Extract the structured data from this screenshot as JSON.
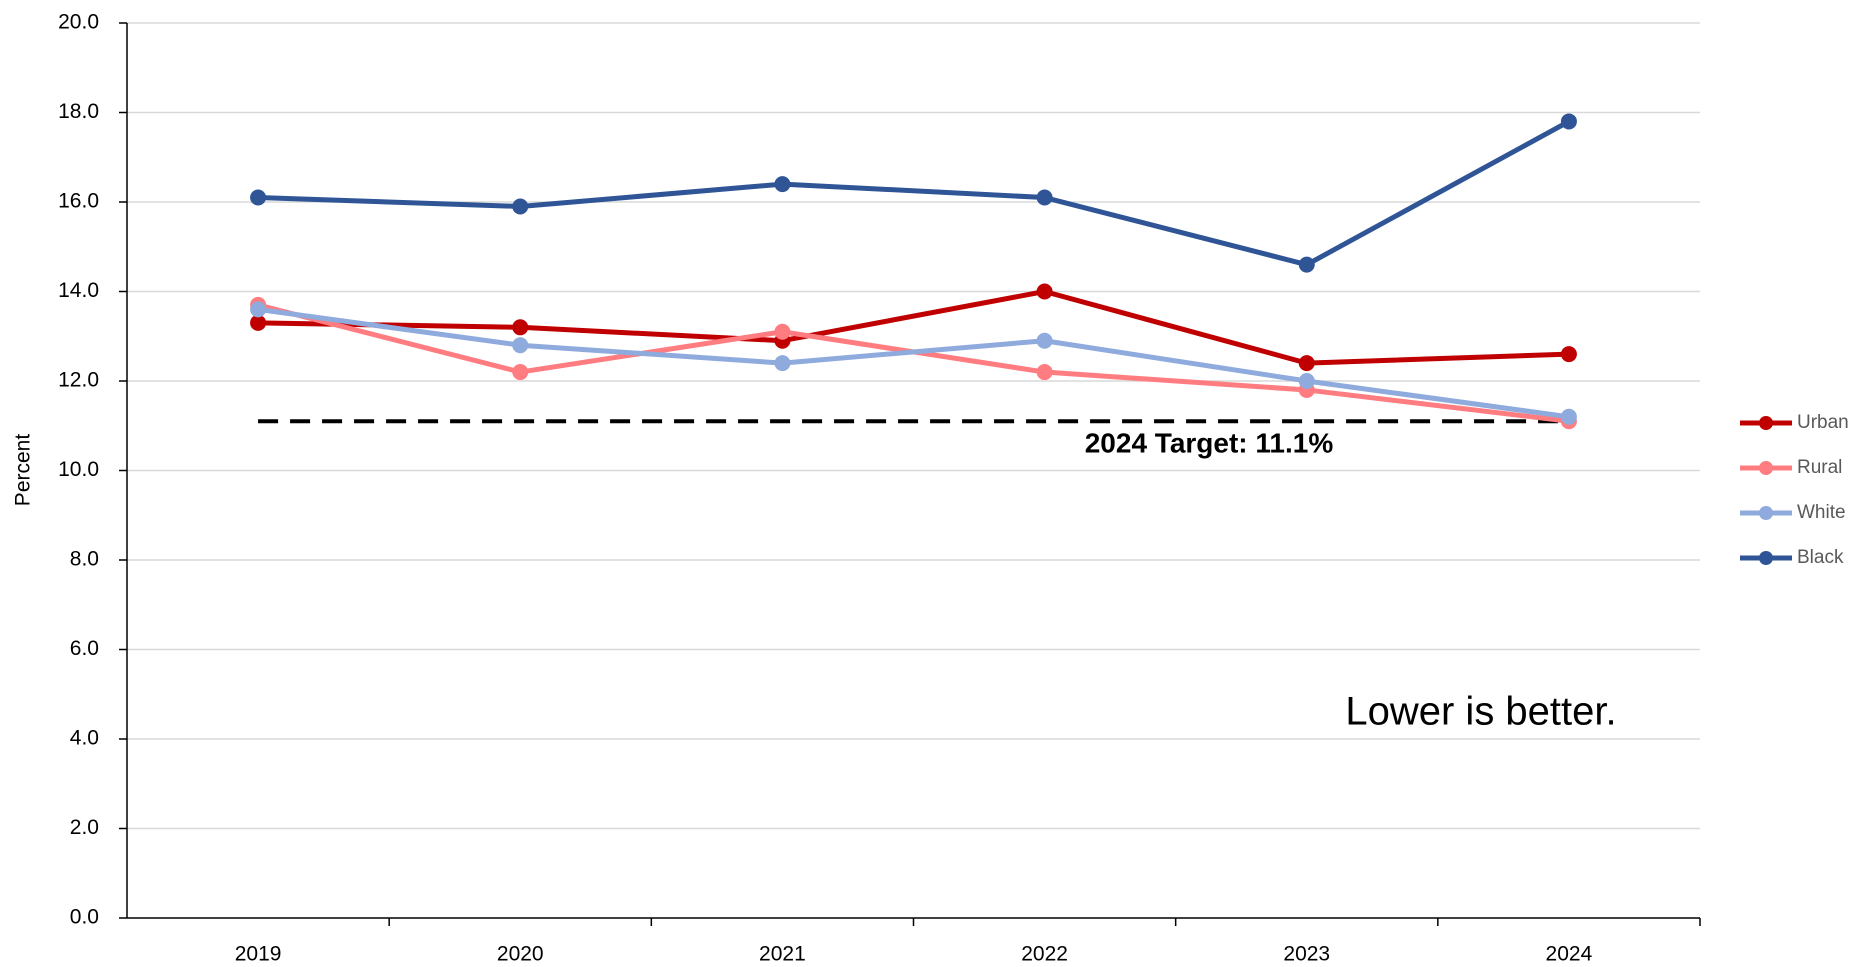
{
  "chart_data": {
    "type": "line",
    "y_label": "Percent",
    "categories": [
      "2019",
      "2020",
      "2021",
      "2022",
      "2023",
      "2024"
    ],
    "series": [
      {
        "name": "Urban",
        "color": "#c00000",
        "values": [
          13.3,
          13.2,
          12.9,
          14.0,
          12.4,
          12.6
        ]
      },
      {
        "name": "Rural",
        "color": "#ff7c80",
        "values": [
          13.7,
          12.2,
          13.1,
          12.2,
          11.8,
          11.1
        ]
      },
      {
        "name": "White",
        "color": "#8faadc",
        "values": [
          13.6,
          12.8,
          12.4,
          12.9,
          12.0,
          11.2
        ]
      },
      {
        "name": "Black",
        "color": "#2f5597",
        "values": [
          16.1,
          15.9,
          16.4,
          16.1,
          14.6,
          17.8
        ]
      }
    ],
    "target": {
      "value": 11.1,
      "label": "2024 Target: 11.1%",
      "color": "#000000"
    },
    "annotation": "Lower is better.",
    "ylim": [
      0,
      20
    ],
    "yticks": [
      {
        "value": 0,
        "label": "0.0"
      },
      {
        "value": 2,
        "label": "2.0"
      },
      {
        "value": 4,
        "label": "4.0"
      },
      {
        "value": 6,
        "label": "6.0"
      },
      {
        "value": 8,
        "label": "8.0"
      },
      {
        "value": 10,
        "label": "10.0"
      },
      {
        "value": 12,
        "label": "12.0"
      },
      {
        "value": 14,
        "label": "14.0"
      },
      {
        "value": 16,
        "label": "16.0"
      },
      {
        "value": 18,
        "label": "18.0"
      },
      {
        "value": 20,
        "label": "20.0"
      }
    ],
    "grid": true,
    "legend": "right"
  }
}
